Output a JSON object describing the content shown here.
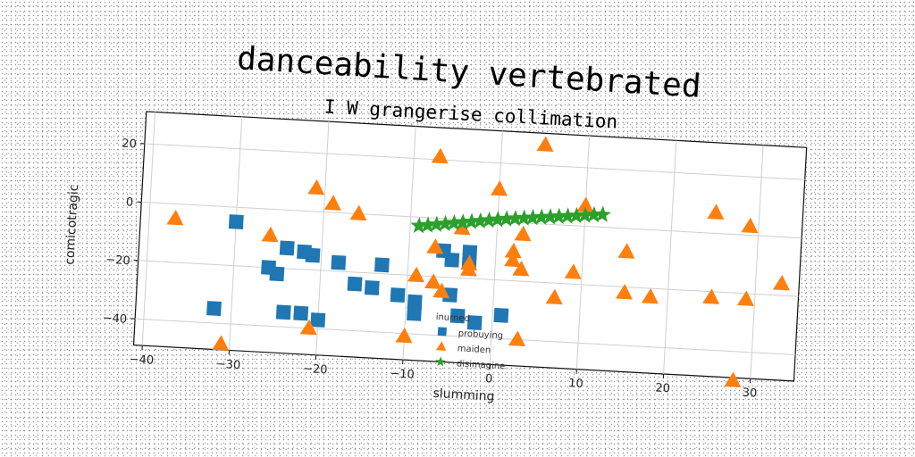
{
  "chart_data": {
    "type": "scatter",
    "title": "danceability vertebrated",
    "subtitle": "I W grangerise collimation",
    "xlabel": "slumming",
    "ylabel": "comicotragic",
    "xlim": [
      -41,
      35
    ],
    "ylim": [
      -49,
      31
    ],
    "xticks": [
      -40,
      -30,
      -20,
      -10,
      0,
      10,
      20,
      30
    ],
    "yticks": [
      -40,
      -20,
      0,
      20
    ],
    "grid": true,
    "legend": {
      "title": "inurned",
      "placement": "lower-center"
    },
    "series": [
      {
        "name": "probuying",
        "marker": "square",
        "color": "#1f77b4",
        "points": [
          [
            -30,
            -5
          ],
          [
            -32,
            -35
          ],
          [
            -24,
            -13
          ],
          [
            -25,
            -22
          ],
          [
            -26,
            -20
          ],
          [
            -22,
            -14
          ],
          [
            -21,
            -15
          ],
          [
            -18,
            -17
          ],
          [
            -16,
            -24
          ],
          [
            -13,
            -17
          ],
          [
            -14,
            -25
          ],
          [
            -11,
            -27
          ],
          [
            -9,
            -29
          ],
          [
            -6,
            -11
          ],
          [
            -5,
            -14
          ],
          [
            -3,
            -14
          ],
          [
            -5,
            -26
          ],
          [
            -2,
            -35
          ],
          [
            -24,
            -35
          ],
          [
            -22,
            -35
          ],
          [
            -20,
            -37
          ],
          [
            -9,
            -33
          ],
          [
            -3,
            -11
          ],
          [
            1,
            -32
          ],
          [
            -4,
            -33
          ]
        ]
      },
      {
        "name": "maiden",
        "marker": "triangle",
        "color": "#ff7f0e",
        "points": [
          [
            -37,
            -5
          ],
          [
            -26,
            -9
          ],
          [
            -21,
            8
          ],
          [
            -19,
            3
          ],
          [
            -16,
            0
          ],
          [
            -21,
            -40
          ],
          [
            -31,
            -47
          ],
          [
            -9,
            -20
          ],
          [
            -7,
            21
          ],
          [
            -7,
            -10
          ],
          [
            -6,
            -25
          ],
          [
            -7,
            -22
          ],
          [
            -4,
            -3
          ],
          [
            -3,
            -17
          ],
          [
            -3,
            -15
          ],
          [
            -10,
            -41
          ],
          [
            0,
            11
          ],
          [
            2,
            -10
          ],
          [
            2,
            -13
          ],
          [
            3,
            -4
          ],
          [
            3,
            -16
          ],
          [
            3,
            -40
          ],
          [
            5,
            27
          ],
          [
            7,
            -25
          ],
          [
            9,
            -16
          ],
          [
            10,
            7
          ],
          [
            15,
            -8
          ],
          [
            15,
            -22
          ],
          [
            18,
            -23
          ],
          [
            25,
            7
          ],
          [
            25,
            -22
          ],
          [
            28,
            -50
          ],
          [
            29,
            -22
          ],
          [
            29,
            3
          ],
          [
            33,
            -16
          ]
        ]
      },
      {
        "name": "disimagine",
        "marker": "star",
        "color": "#2ca02c",
        "points": [
          [
            -9,
            -3
          ],
          [
            -8,
            -2.6
          ],
          [
            -7,
            -2.2
          ],
          [
            -6,
            -1.8
          ],
          [
            -5,
            -1.4
          ],
          [
            -4,
            -1
          ],
          [
            -3,
            -0.6
          ],
          [
            -2,
            -0.2
          ],
          [
            -1,
            0.2
          ],
          [
            0,
            0.6
          ],
          [
            1,
            1
          ],
          [
            2,
            1.3
          ],
          [
            3,
            1.6
          ],
          [
            4,
            1.9
          ],
          [
            5,
            2.2
          ],
          [
            6,
            2.5
          ],
          [
            7,
            2.8
          ],
          [
            8,
            3.1
          ],
          [
            9,
            3.4
          ],
          [
            10,
            3.7
          ],
          [
            11,
            4
          ],
          [
            12,
            4.3
          ]
        ]
      }
    ]
  }
}
